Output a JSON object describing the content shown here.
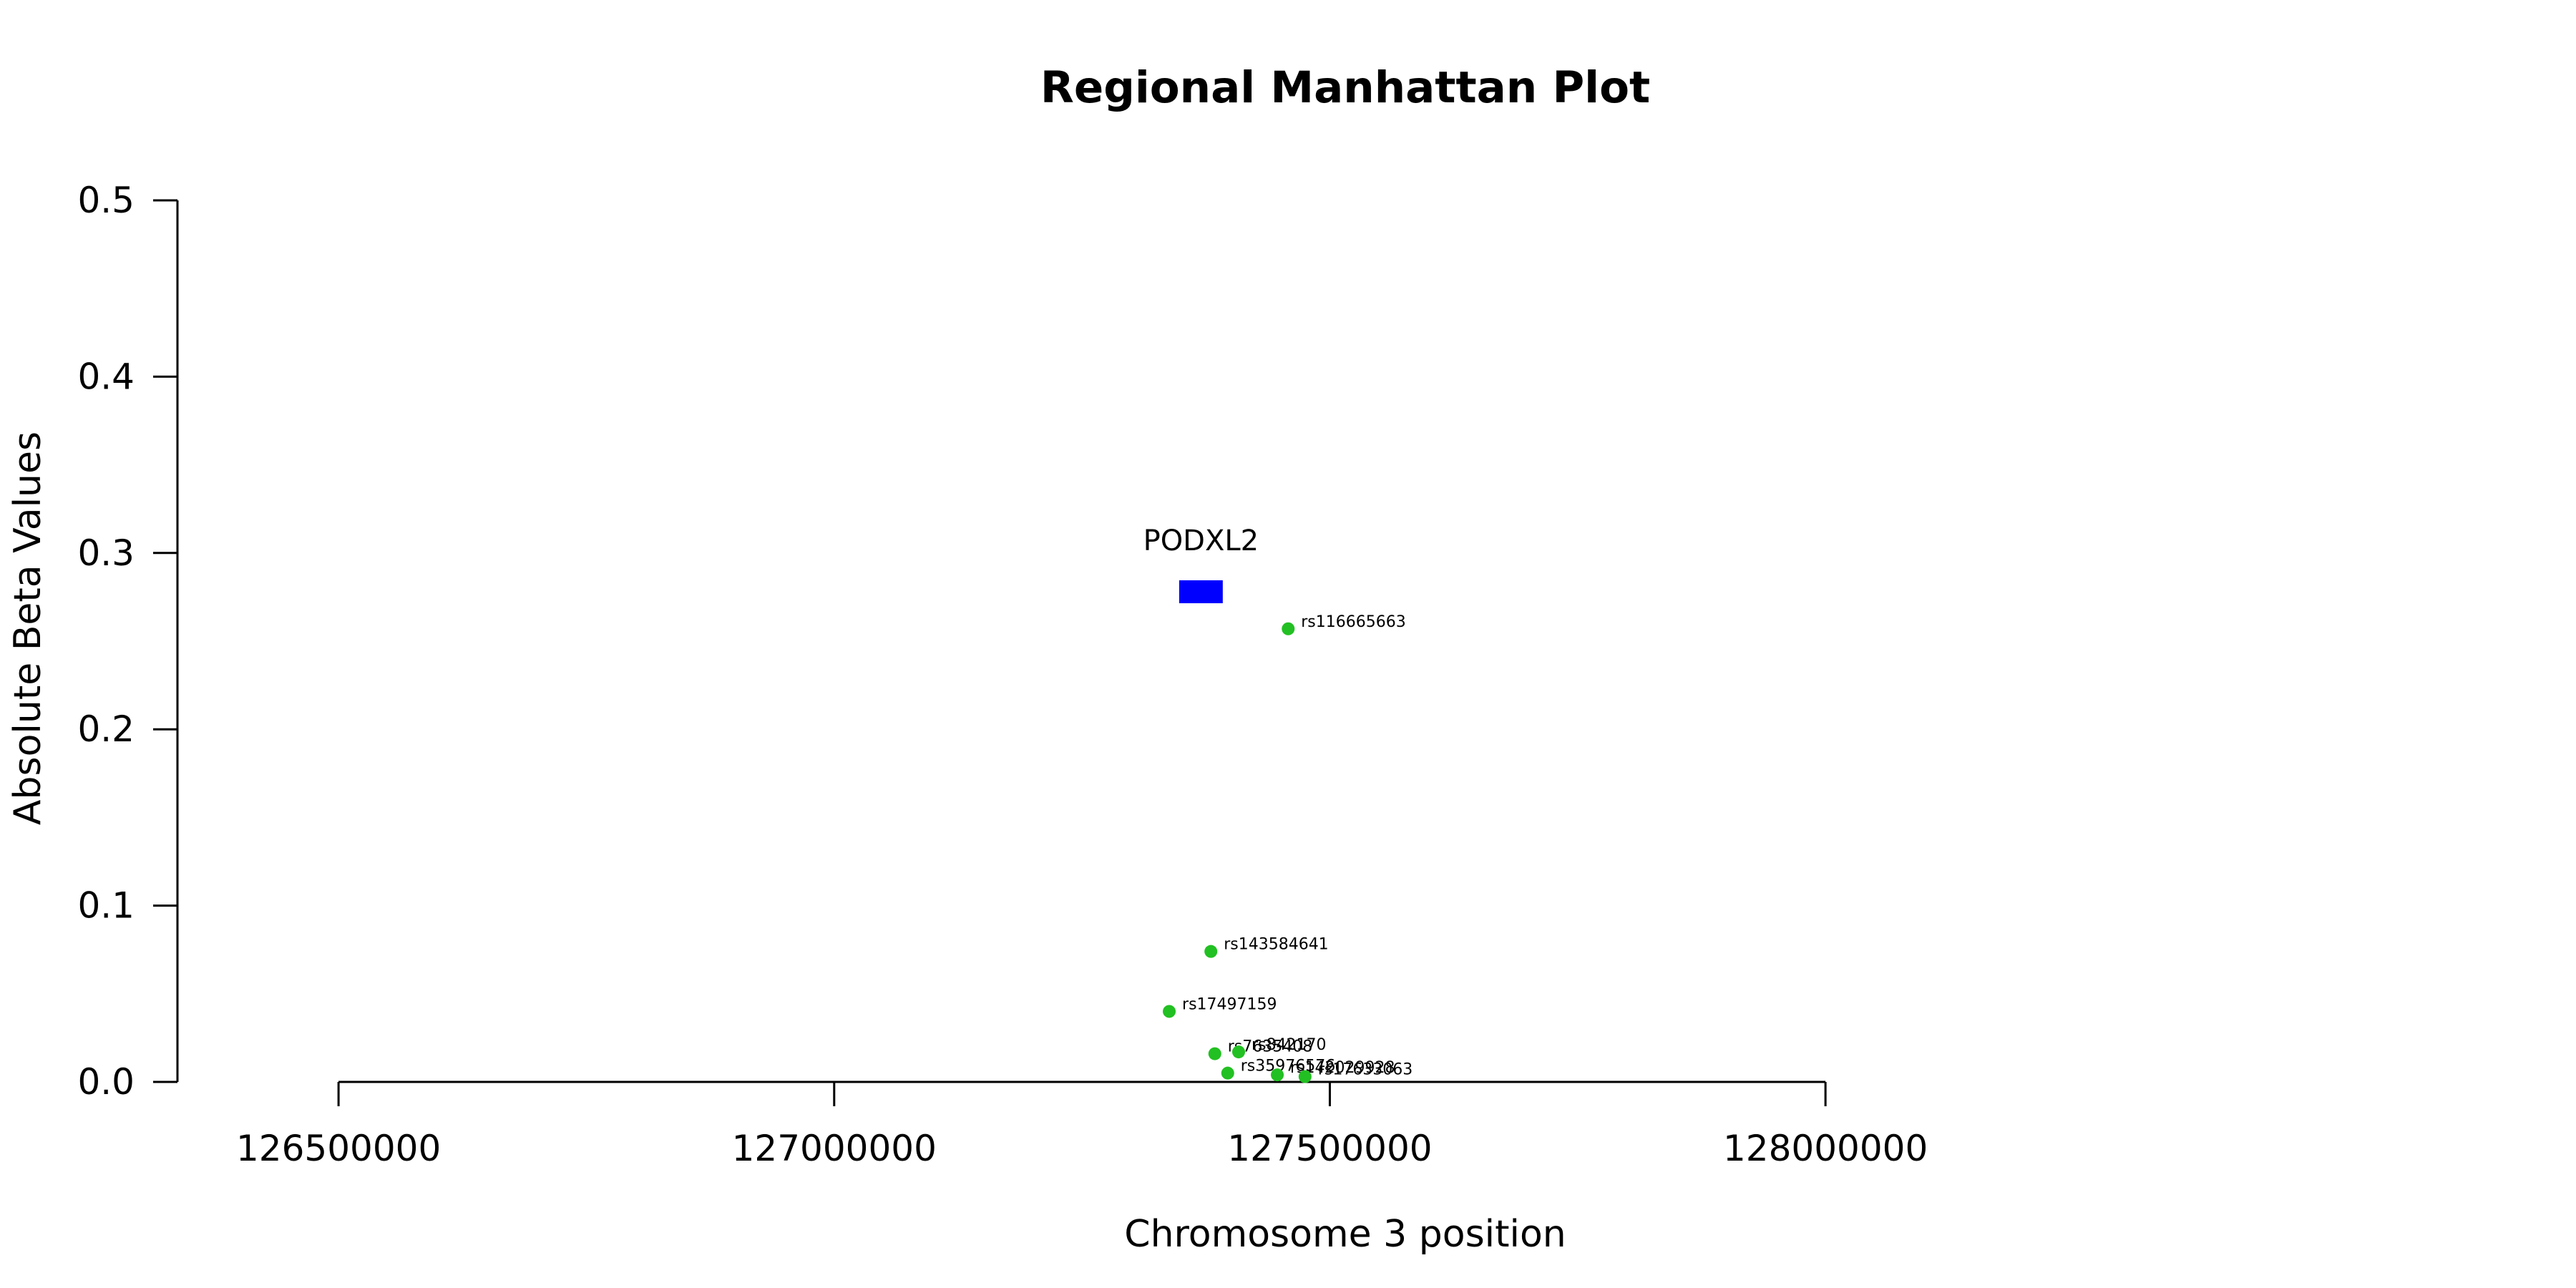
{
  "chart_data": {
    "type": "scatter",
    "title": "Regional Manhattan Plot",
    "xlabel": "Chromosome 3 position",
    "ylabel": "Absolute Beta Values",
    "xlim": [
      126337500,
      128350000
    ],
    "ylim": [
      0,
      0.5
    ],
    "x_axis_range": [
      126500000,
      128000000
    ],
    "xticks": [
      126500000,
      127000000,
      127500000,
      128000000
    ],
    "xtick_labels": [
      "126500000",
      "127000000",
      "127500000",
      "128000000"
    ],
    "yticks": [
      0,
      0.1,
      0.2,
      0.3,
      0.4,
      0.5
    ],
    "ytick_labels": [
      "0.0",
      "0.1",
      "0.2",
      "0.3",
      "0.4",
      "0.5"
    ],
    "grid": false,
    "point_color": "#22c022",
    "gene": {
      "name": "PODXL2",
      "start": 127348000,
      "end": 127392000,
      "y": 0.278,
      "height": 0.013,
      "color": "#0000ff"
    },
    "points": [
      {
        "label": "rs116665663",
        "x": 127458000,
        "y": 0.257
      },
      {
        "label": "rs143584641",
        "x": 127380000,
        "y": 0.074
      },
      {
        "label": "rs17497159",
        "x": 127338000,
        "y": 0.04
      },
      {
        "label": "rs7635408",
        "x": 127384000,
        "y": 0.016
      },
      {
        "label": "rs842170",
        "x": 127408000,
        "y": 0.017
      },
      {
        "label": "rs35976576",
        "x": 127397000,
        "y": 0.005
      },
      {
        "label": "rs142029928",
        "x": 127447000,
        "y": 0.004
      },
      {
        "label": "rs17633063",
        "x": 127475000,
        "y": 0.003
      }
    ]
  }
}
